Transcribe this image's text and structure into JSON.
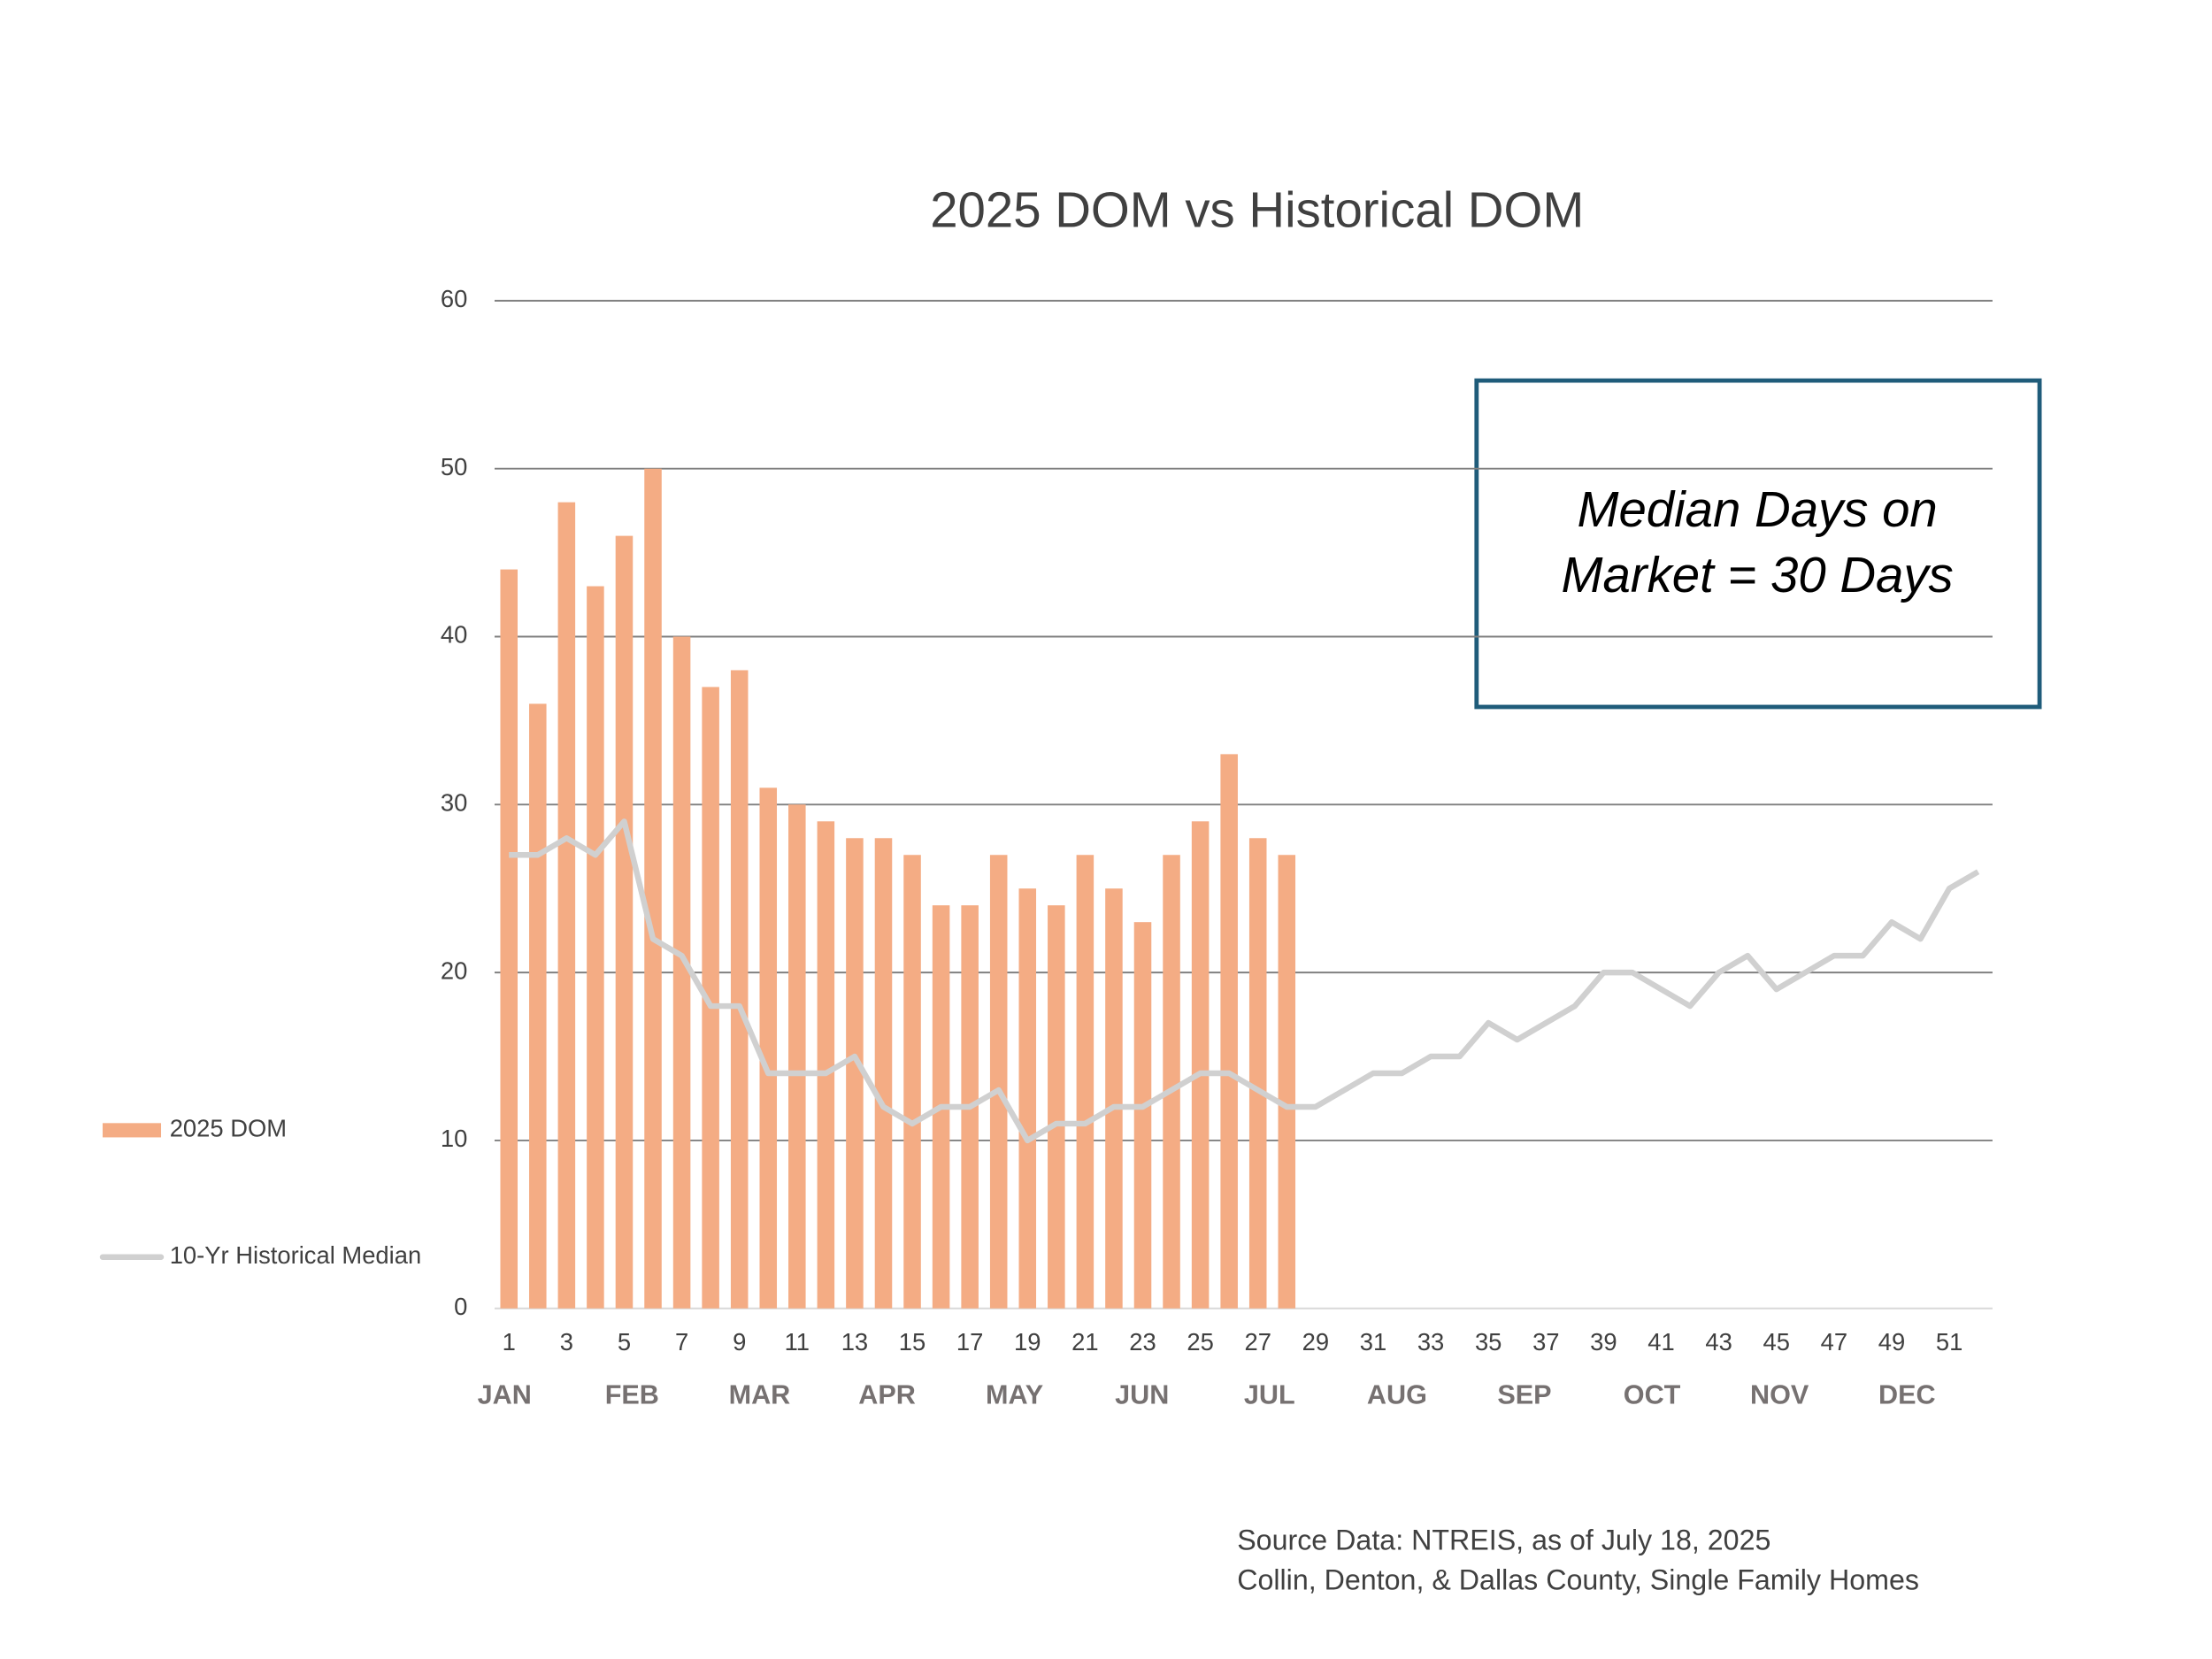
{
  "chart_data": {
    "type": "bar",
    "title": "2025 DOM vs Historical DOM",
    "categories": [
      1,
      null,
      3,
      null,
      5,
      null,
      7,
      null,
      9,
      null,
      11,
      null,
      13,
      null,
      15,
      null,
      17,
      null,
      19,
      null,
      21,
      null,
      23,
      null,
      25,
      null,
      27,
      null,
      29,
      null,
      31,
      null,
      33,
      null,
      35,
      null,
      37,
      null,
      39,
      null,
      41,
      null,
      43,
      null,
      45,
      null,
      47,
      null,
      49,
      null,
      51,
      null
    ],
    "months": [
      "JAN",
      "FEB",
      "MAR",
      "APR",
      "MAY",
      "JUN",
      "JUL",
      "AUG",
      "SEP",
      "OCT",
      "NOV",
      "DEC"
    ],
    "series": [
      {
        "name": "2025 DOM",
        "type": "bar",
        "color": "#f4ac84",
        "values": [
          44,
          36,
          48,
          43,
          46,
          50,
          40,
          37,
          38,
          31,
          30,
          29,
          28,
          28,
          27,
          24,
          24,
          27,
          25,
          24,
          27,
          25,
          23,
          27,
          29,
          33,
          28,
          27,
          null,
          null,
          null,
          null,
          null,
          null,
          null,
          null,
          null,
          null,
          null,
          null,
          null,
          null,
          null,
          null,
          null,
          null,
          null,
          null,
          null,
          null,
          null,
          null
        ]
      },
      {
        "name": "10-Yr Historical Median",
        "type": "line",
        "color": "#d0d0d0",
        "values": [
          27,
          27,
          28,
          27,
          29,
          22,
          21,
          18,
          18,
          14,
          14,
          14,
          15,
          12,
          11,
          12,
          12,
          13,
          10,
          11,
          11,
          12,
          12,
          13,
          14,
          14,
          13,
          12,
          12,
          13,
          14,
          14,
          15,
          15,
          17,
          16,
          17,
          18,
          20,
          20,
          19,
          18,
          20,
          21,
          19,
          20,
          21,
          21,
          23,
          22,
          25,
          26
        ]
      }
    ],
    "ylim": [
      0,
      60
    ],
    "yticks": [
      0,
      10,
      20,
      30,
      40,
      50,
      60
    ],
    "grid": true,
    "legend": "left",
    "annotation": [
      "Median Days on",
      "Market = 30 Days"
    ],
    "source": [
      "Source Data:  NTREIS, as of July 18, 2025",
      "Collin, Denton, & Dallas County, Single Family Homes"
    ]
  }
}
